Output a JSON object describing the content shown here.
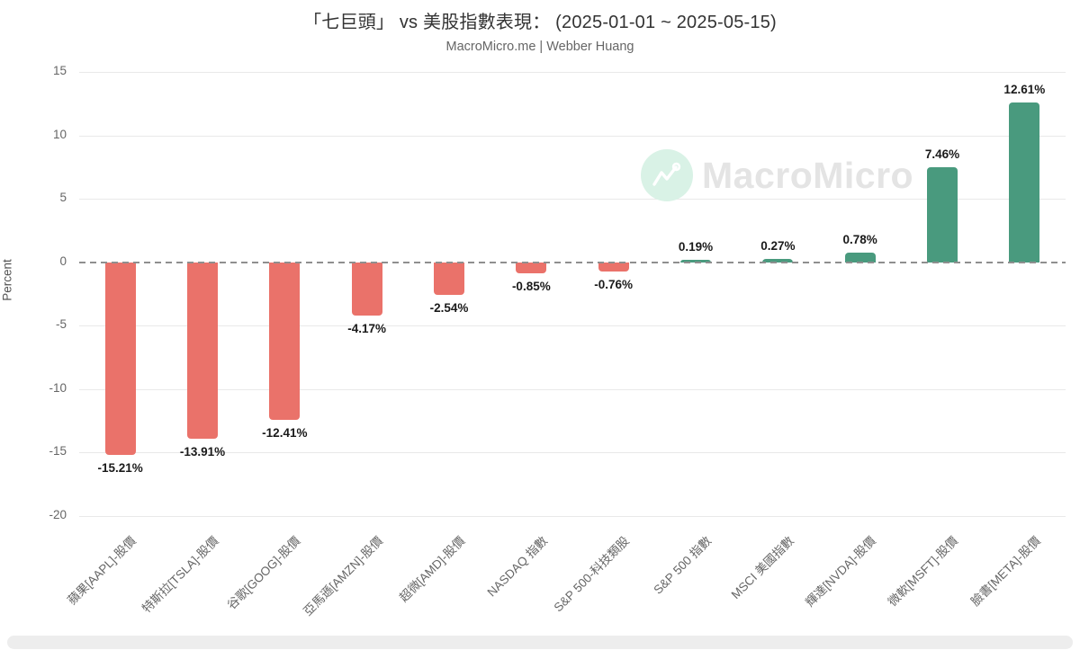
{
  "header": {
    "title": "「七巨頭」 vs 美股指數表現： (2025-01-01 ~ 2025-05-15)",
    "subtitle": "MacroMicro.me | Webber Huang"
  },
  "watermark": {
    "icon": "macromicro-logo-icon",
    "text": "MacroMicro",
    "circle_color": "#d9f2e6",
    "text_color": "#e4e4e4"
  },
  "chart_data": {
    "type": "bar",
    "title": "「七巨頭」 vs 美股指數表現： (2025-01-01 ~ 2025-05-15)",
    "subtitle": "MacroMicro.me | Webber Huang",
    "xlabel": "",
    "ylabel": "Percent",
    "ylim": [
      -20,
      15
    ],
    "yticks": [
      15,
      10,
      5,
      0,
      -5,
      -10,
      -15,
      -20
    ],
    "grid": true,
    "zero_line_style": "dashed",
    "legend": "none",
    "categories": [
      "蘋果[AAPL]-股價",
      "特斯拉[TSLA]-股價",
      "谷歌[GOOG]-股價",
      "亞馬遜[AMZN]-股價",
      "超微[AMD]-股價",
      "NASDAQ 指數",
      "S&P 500-科技類股",
      "S&P 500 指數",
      "MSCI 美國指數",
      "輝達[NVDA]-股價",
      "微軟[MSFT]-股價",
      "臉書[META]-股價"
    ],
    "values": [
      -15.21,
      -13.91,
      -12.41,
      -4.17,
      -2.54,
      -0.85,
      -0.76,
      0.19,
      0.27,
      0.78,
      7.46,
      12.61
    ],
    "value_labels": [
      "-15.21%",
      "-13.91%",
      "-12.41%",
      "-4.17%",
      "-2.54%",
      "-0.85%",
      "-0.76%",
      "0.19%",
      "0.27%",
      "0.78%",
      "7.46%",
      "12.61%"
    ],
    "colors": {
      "negative": "#ea726a",
      "positive": "#499a7e"
    }
  }
}
